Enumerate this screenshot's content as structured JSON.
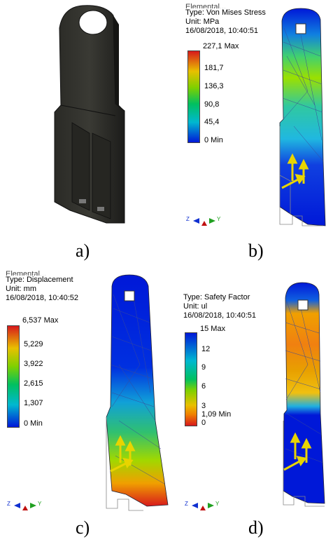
{
  "captions": [
    "a)",
    "b)",
    "c)",
    "d)"
  ],
  "panel_b": {
    "partial_header": "Elemental...",
    "type": "Type: Von Mises Stress",
    "unit": "Unit: MPa",
    "timestamp": "16/08/2018, 10:40:51",
    "legend": [
      "227,1 Max",
      "181,7",
      "136,3",
      "90,8",
      "45,4",
      "0 Min"
    ]
  },
  "panel_c": {
    "partial_header": "Elemental...",
    "type": "Type: Displacement",
    "unit": "Unit: mm",
    "timestamp": "16/08/2018, 10:40:52",
    "legend": [
      "6,537 Max",
      "5,229",
      "3,922",
      "2,615",
      "1,307",
      "0 Min"
    ]
  },
  "panel_d": {
    "type": "Type: Safety Factor",
    "unit": "Unit: ul",
    "timestamp": "16/08/2018, 10:40:51",
    "legend": [
      "15 Max",
      "12",
      "9",
      "6",
      "3",
      "1,09 Min",
      "0"
    ]
  },
  "triad_labels": [
    "Z",
    "Y"
  ],
  "colors": {
    "stress_scale": [
      "#d7191c",
      "#e8c000",
      "#7fd000",
      "#00c060",
      "#00b8d0",
      "#0018d8"
    ],
    "safety_scale": [
      "#0018d8",
      "#00b8d0",
      "#00c060",
      "#e8c000",
      "#d7191c"
    ]
  }
}
